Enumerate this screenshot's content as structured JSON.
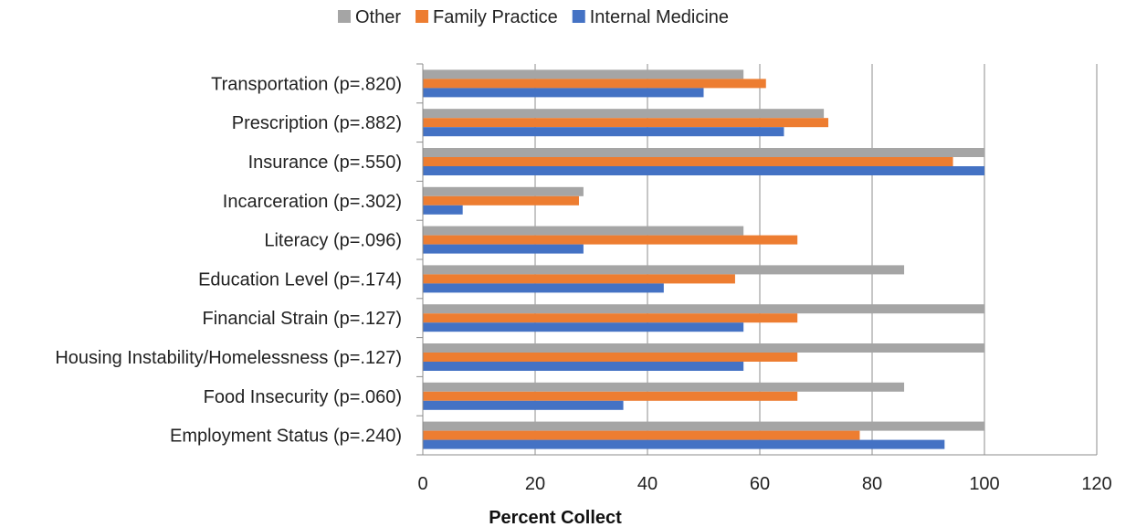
{
  "chart_data": {
    "type": "bar",
    "orientation": "horizontal",
    "title": "",
    "xlabel": "Percent Collect",
    "ylabel": "",
    "xlim": [
      0,
      120
    ],
    "xticks": [
      0,
      20,
      40,
      60,
      80,
      100,
      120
    ],
    "grid": "vertical",
    "legend_position": "top",
    "categories": [
      "Transportation (p=.820)",
      "Prescription (p=.882)",
      "Insurance (p=.550)",
      "Incarceration (p=.302)",
      "Literacy (p=.096)",
      "Education Level (p=.174)",
      "Financial Strain (p=.127)",
      "Housing Instability/Homelessness (p=.127)",
      "Food Insecurity (p=.060)",
      "Employment Status (p=.240)"
    ],
    "series": [
      {
        "name": "Other",
        "color": "#a5a5a5",
        "values": [
          57.1,
          71.4,
          100,
          28.6,
          57.1,
          85.7,
          100,
          100,
          85.7,
          100
        ]
      },
      {
        "name": "Family Practice",
        "color": "#ed7d31",
        "values": [
          61.1,
          72.2,
          94.4,
          27.8,
          66.7,
          55.6,
          66.7,
          66.7,
          66.7,
          77.8
        ]
      },
      {
        "name": "Internal Medicine",
        "color": "#4472c4",
        "values": [
          50.0,
          64.3,
          100,
          7.1,
          28.6,
          42.9,
          57.1,
          57.1,
          35.7,
          92.9
        ]
      }
    ]
  }
}
